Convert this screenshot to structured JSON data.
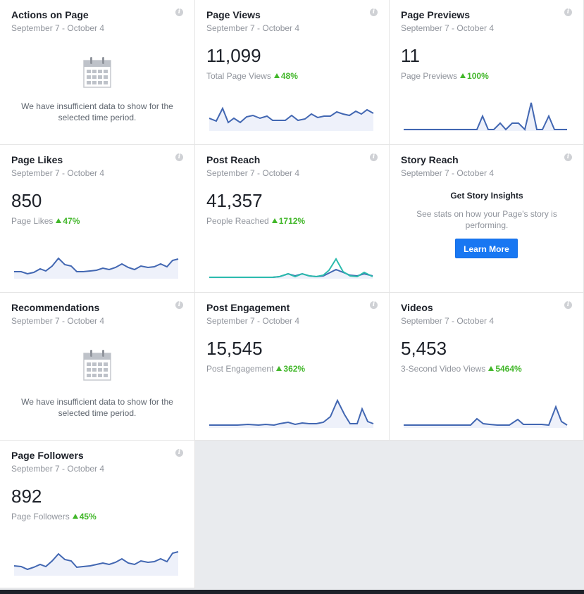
{
  "cards": {
    "actions": {
      "title": "Actions on Page",
      "date": "September 7 - October 4",
      "message": "We have insufficient data to show for the selected time period."
    },
    "page_views": {
      "title": "Page Views",
      "date": "September 7 - October 4",
      "value": "11,099",
      "sub_label": "Total Page Views",
      "delta": "48%"
    },
    "page_previews": {
      "title": "Page Previews",
      "date": "September 7 - October 4",
      "value": "11",
      "sub_label": "Page Previews",
      "delta": "100%"
    },
    "page_likes": {
      "title": "Page Likes",
      "date": "September 7 - October 4",
      "value": "850",
      "sub_label": "Page Likes",
      "delta": "47%"
    },
    "post_reach": {
      "title": "Post Reach",
      "date": "September 7 - October 4",
      "value": "41,357",
      "sub_label": "People Reached",
      "delta": "1712%"
    },
    "story_reach": {
      "title": "Story Reach",
      "date": "September 7 - October 4",
      "heading": "Get Story Insights",
      "text": "See stats on how your Page's story is performing.",
      "button": "Learn More"
    },
    "recommendations": {
      "title": "Recommendations",
      "date": "September 7 - October 4",
      "message": "We have insufficient data to show for the selected time period."
    },
    "post_engagement": {
      "title": "Post Engagement",
      "date": "September 7 - October 4",
      "value": "15,545",
      "sub_label": "Post Engagement",
      "delta": "362%"
    },
    "videos": {
      "title": "Videos",
      "date": "September 7 - October 4",
      "value": "5,453",
      "sub_label": "3-Second Video Views",
      "delta": "5464%"
    },
    "page_followers": {
      "title": "Page Followers",
      "date": "September 7 - October 4",
      "value": "892",
      "sub_label": "Page Followers",
      "delta": "45%"
    }
  },
  "colors": {
    "line": "#4267b2",
    "line_fill": "#eef1fa",
    "teal": "#2bbbad",
    "up": "#42b72a",
    "button": "#1877f2"
  },
  "icons": {
    "info": "info-icon",
    "calendar": "calendar-icon",
    "up_arrow": "up-triangle-icon"
  }
}
